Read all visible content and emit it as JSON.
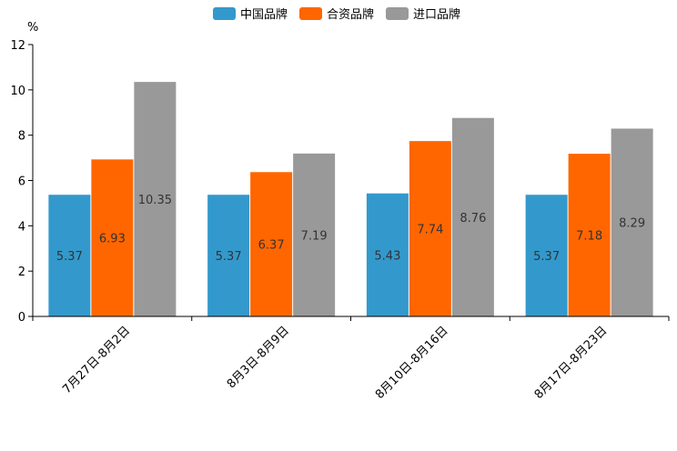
{
  "chart_data": {
    "type": "bar",
    "title": "",
    "xlabel": "",
    "ylabel": "%",
    "ylim": [
      0,
      12
    ],
    "yticks": [
      0,
      2,
      4,
      6,
      8,
      10,
      12
    ],
    "grid": false,
    "legend_position": "top-center",
    "categories": [
      "7月27日-8月2日",
      "8月3日-8月9日",
      "8月10日-8月16日",
      "8月17日-8月23日"
    ],
    "series": [
      {
        "name": "中国品牌",
        "color": "#3399cc",
        "values": [
          5.37,
          5.37,
          5.43,
          5.37
        ],
        "labels": [
          "5.37",
          "5.37",
          "5.43",
          "5.37"
        ]
      },
      {
        "name": "合资品牌",
        "color": "#ff6600",
        "values": [
          6.93,
          6.37,
          7.74,
          7.18
        ],
        "labels": [
          "6.93",
          "6.37",
          "7.74",
          "7.18"
        ]
      },
      {
        "name": "进口品牌",
        "color": "#999999",
        "values": [
          10.35,
          7.19,
          8.76,
          8.29
        ],
        "labels": [
          "10.35",
          "7.19",
          "8.76",
          "8.29"
        ]
      }
    ]
  }
}
